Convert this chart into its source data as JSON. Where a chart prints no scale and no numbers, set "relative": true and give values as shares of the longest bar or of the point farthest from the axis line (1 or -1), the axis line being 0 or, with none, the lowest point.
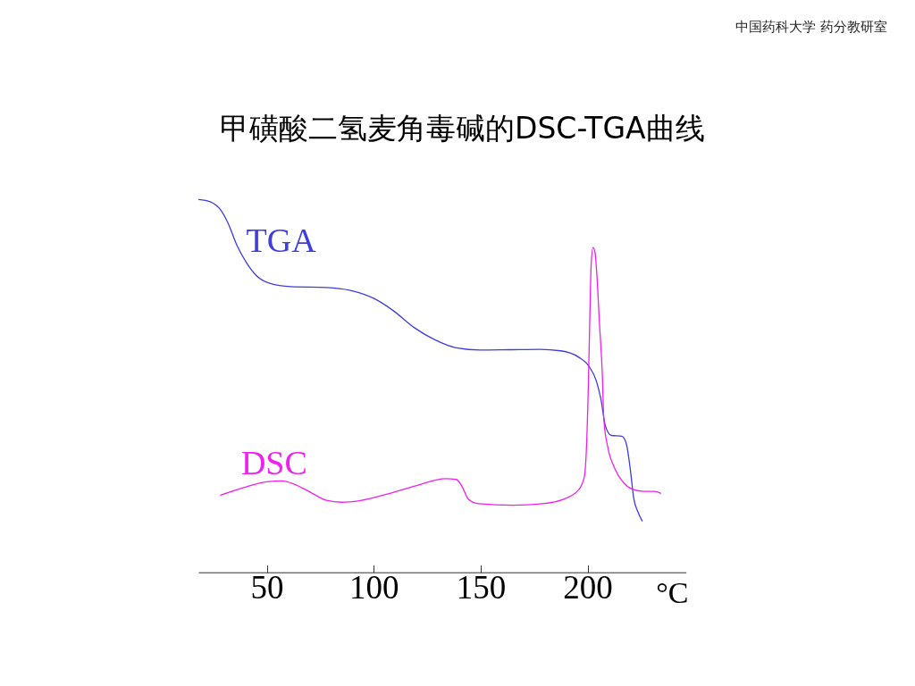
{
  "chart_data": {
    "type": "line",
    "title": "甲磺酸二氢麦角毒碱的DSC-TGA曲线",
    "xlabel": "°C",
    "annotations": [
      "中国药科大学 药分教研室"
    ],
    "relative": true,
    "xlim": [
      18,
      246
    ],
    "xticks": [
      50,
      100,
      150,
      200
    ],
    "series": [
      {
        "name": "TGA",
        "color": "#3d3de0",
        "x": [
          18.2,
          23.5,
          28.4,
          31.9,
          36.1,
          40.3,
          45.1,
          51.4,
          61.2,
          77.9,
          89.1,
          100.9,
          109.3,
          119.0,
          128.8,
          138.6,
          149.7,
          163.7,
          177.6,
          187.4,
          195.8,
          200.6,
          204.1,
          206.2,
          208.3,
          211.1,
          216.0,
          218.1,
          220.2,
          221.5,
          223.6,
          225.5
        ],
        "values": [
          1.0,
          0.994,
          0.972,
          0.936,
          0.876,
          0.832,
          0.796,
          0.775,
          0.766,
          0.764,
          0.756,
          0.732,
          0.701,
          0.656,
          0.623,
          0.602,
          0.596,
          0.597,
          0.598,
          0.594,
          0.577,
          0.553,
          0.513,
          0.465,
          0.393,
          0.367,
          0.365,
          0.345,
          0.265,
          0.201,
          0.161,
          0.138
        ]
      },
      {
        "name": "DSC",
        "color": "#f020f0",
        "x": [
          28.4,
          40.3,
          50.0,
          57.0,
          62.6,
          70.9,
          77.9,
          84.9,
          93.3,
          105.8,
          119.7,
          133.7,
          138.6,
          141.4,
          144.1,
          149.0,
          165.1,
          179.0,
          188.8,
          195.8,
          198.5,
          199.7,
          200.2,
          201.0,
          201.6,
          202.5,
          203.4,
          204.4,
          205.5,
          206.9,
          207.6,
          209.7,
          212.5,
          216.7,
          220.9,
          226.4,
          231.3,
          234.1
        ],
        "values": [
          0.207,
          0.229,
          0.243,
          0.245,
          0.237,
          0.213,
          0.193,
          0.188,
          0.192,
          0.209,
          0.232,
          0.251,
          0.249,
          0.229,
          0.197,
          0.184,
          0.18,
          0.184,
          0.196,
          0.221,
          0.257,
          0.369,
          0.465,
          0.672,
          0.816,
          0.871,
          0.86,
          0.792,
          0.672,
          0.529,
          0.409,
          0.329,
          0.281,
          0.241,
          0.223,
          0.217,
          0.217,
          0.212
        ]
      }
    ]
  }
}
